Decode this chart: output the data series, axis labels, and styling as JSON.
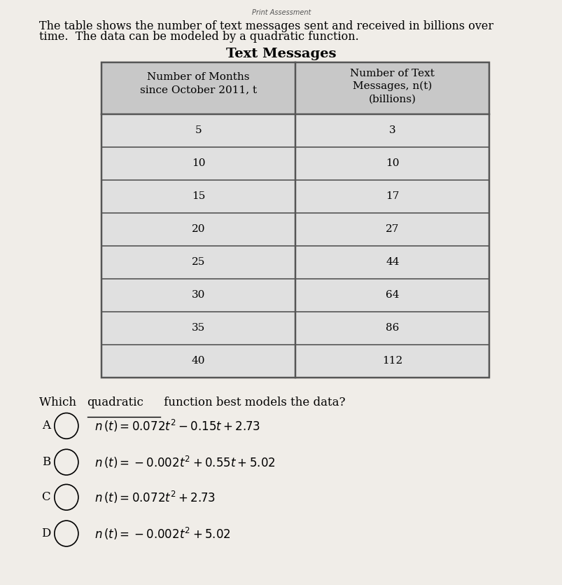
{
  "print_assessment_text": "Print Assessment",
  "intro_text_line1": "The table shows the number of text messages sent and received in billions over",
  "intro_text_line2": "time.  The data can be modeled by a quadratic function.",
  "table_title": "Text Messages",
  "col1_header_line1": "Number of Months",
  "col1_header_line2": "since October 2011, t",
  "col2_header_line1": "Number of Text",
  "col2_header_line2": "Messages, n(t)",
  "col2_header_line3": "(billions)",
  "table_data": [
    [
      5,
      3
    ],
    [
      10,
      10
    ],
    [
      15,
      17
    ],
    [
      20,
      27
    ],
    [
      25,
      44
    ],
    [
      30,
      64
    ],
    [
      35,
      86
    ],
    [
      40,
      112
    ]
  ],
  "question_pre": "Which ",
  "question_underlined": "quadratic",
  "question_post": " function best models the data?",
  "options": [
    {
      "label": "A",
      "math": "n (t) = 0.072t² − 0.15t + 2.73"
    },
    {
      "label": "B",
      "math": "n (t) = −0.002t² + 0.55t + 5.02"
    },
    {
      "label": "C",
      "math": "n (t) = 0.072t² + 2.73"
    },
    {
      "label": "D",
      "math": "n (t) = −0.002t² + 5.02"
    }
  ],
  "background_color": "#f0ede8",
  "table_bg_header": "#c8c8c8",
  "table_bg_row": "#e0e0e0",
  "table_border_color": "#555555",
  "text_color": "#000000",
  "circle_color": "#000000",
  "print_fontsize": 7,
  "intro_fontsize": 11.5,
  "title_fontsize": 14,
  "table_fontsize": 11,
  "question_fontsize": 12,
  "option_fontsize": 12
}
